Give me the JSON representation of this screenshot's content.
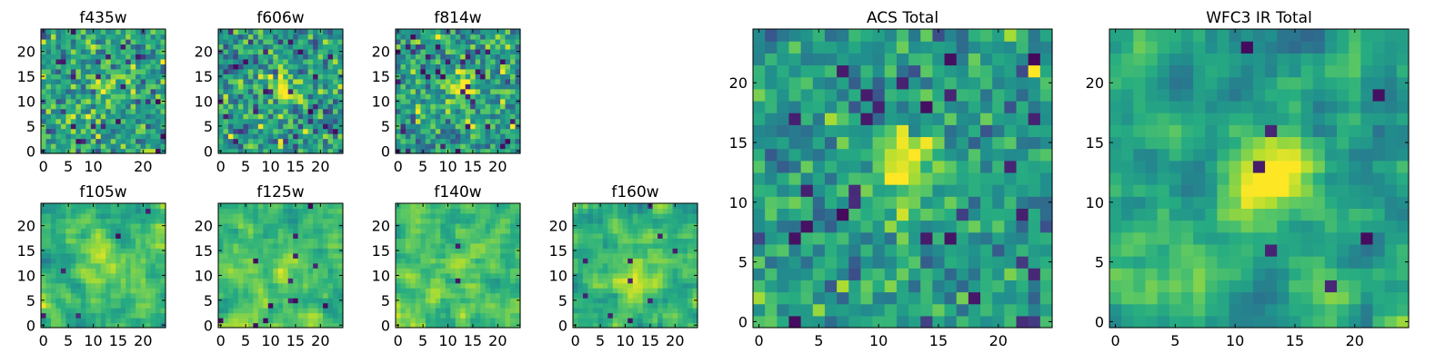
{
  "chart_data": [
    {
      "type": "heatmap",
      "title": "f435w",
      "xticks": [
        0,
        5,
        10,
        20
      ],
      "yticks": [
        0,
        5,
        10,
        15,
        20
      ],
      "xlim": [
        0,
        24
      ],
      "ylim": [
        0,
        24
      ],
      "grid": false,
      "colormap": "viridis"
    },
    {
      "type": "heatmap",
      "title": "f606w",
      "xticks": [
        0,
        5,
        10,
        15,
        20
      ],
      "yticks": [
        0,
        5,
        10,
        15,
        20
      ],
      "xlim": [
        0,
        24
      ],
      "ylim": [
        0,
        24
      ],
      "grid": false,
      "colormap": "viridis"
    },
    {
      "type": "heatmap",
      "title": "f814w",
      "xticks": [
        0,
        5,
        10,
        15,
        20
      ],
      "yticks": [
        0,
        5,
        10,
        15,
        20
      ],
      "xlim": [
        0,
        24
      ],
      "ylim": [
        0,
        24
      ],
      "grid": false,
      "colormap": "viridis"
    },
    {
      "type": "heatmap",
      "title": "f105w",
      "xticks": [
        0,
        5,
        10,
        15,
        20
      ],
      "yticks": [
        0,
        5,
        10,
        15,
        20
      ],
      "xlim": [
        0,
        24
      ],
      "ylim": [
        0,
        24
      ],
      "grid": false,
      "colormap": "viridis"
    },
    {
      "type": "heatmap",
      "title": "f125w",
      "xticks": [
        0,
        5,
        10,
        15,
        20
      ],
      "yticks": [
        0,
        5,
        10,
        15,
        20
      ],
      "xlim": [
        0,
        24
      ],
      "ylim": [
        0,
        24
      ],
      "grid": false,
      "colormap": "viridis"
    },
    {
      "type": "heatmap",
      "title": "f140w",
      "xticks": [
        0,
        5,
        10,
        15,
        20
      ],
      "yticks": [
        0,
        5,
        10,
        15,
        20
      ],
      "xlim": [
        0,
        24
      ],
      "ylim": [
        0,
        24
      ],
      "grid": false,
      "colormap": "viridis"
    },
    {
      "type": "heatmap",
      "title": "f160w",
      "xticks": [
        0,
        5,
        10,
        15,
        20
      ],
      "yticks": [
        0,
        5,
        10,
        15,
        20
      ],
      "xlim": [
        0,
        24
      ],
      "ylim": [
        0,
        24
      ],
      "grid": false,
      "colormap": "viridis"
    },
    {
      "type": "heatmap",
      "title": "ACS Total",
      "xticks": [
        0,
        5,
        10,
        15,
        20
      ],
      "yticks": [
        0,
        5,
        10,
        15,
        20
      ],
      "xlim": [
        0,
        24
      ],
      "ylim": [
        0,
        24
      ],
      "grid": false,
      "colormap": "viridis"
    },
    {
      "type": "heatmap",
      "title": "WFC3 IR Total",
      "xticks": [
        0,
        5,
        10,
        15,
        20
      ],
      "yticks": [
        0,
        5,
        10,
        15,
        20
      ],
      "xlim": [
        0,
        24
      ],
      "ylim": [
        0,
        24
      ],
      "grid": false,
      "colormap": "viridis"
    }
  ]
}
